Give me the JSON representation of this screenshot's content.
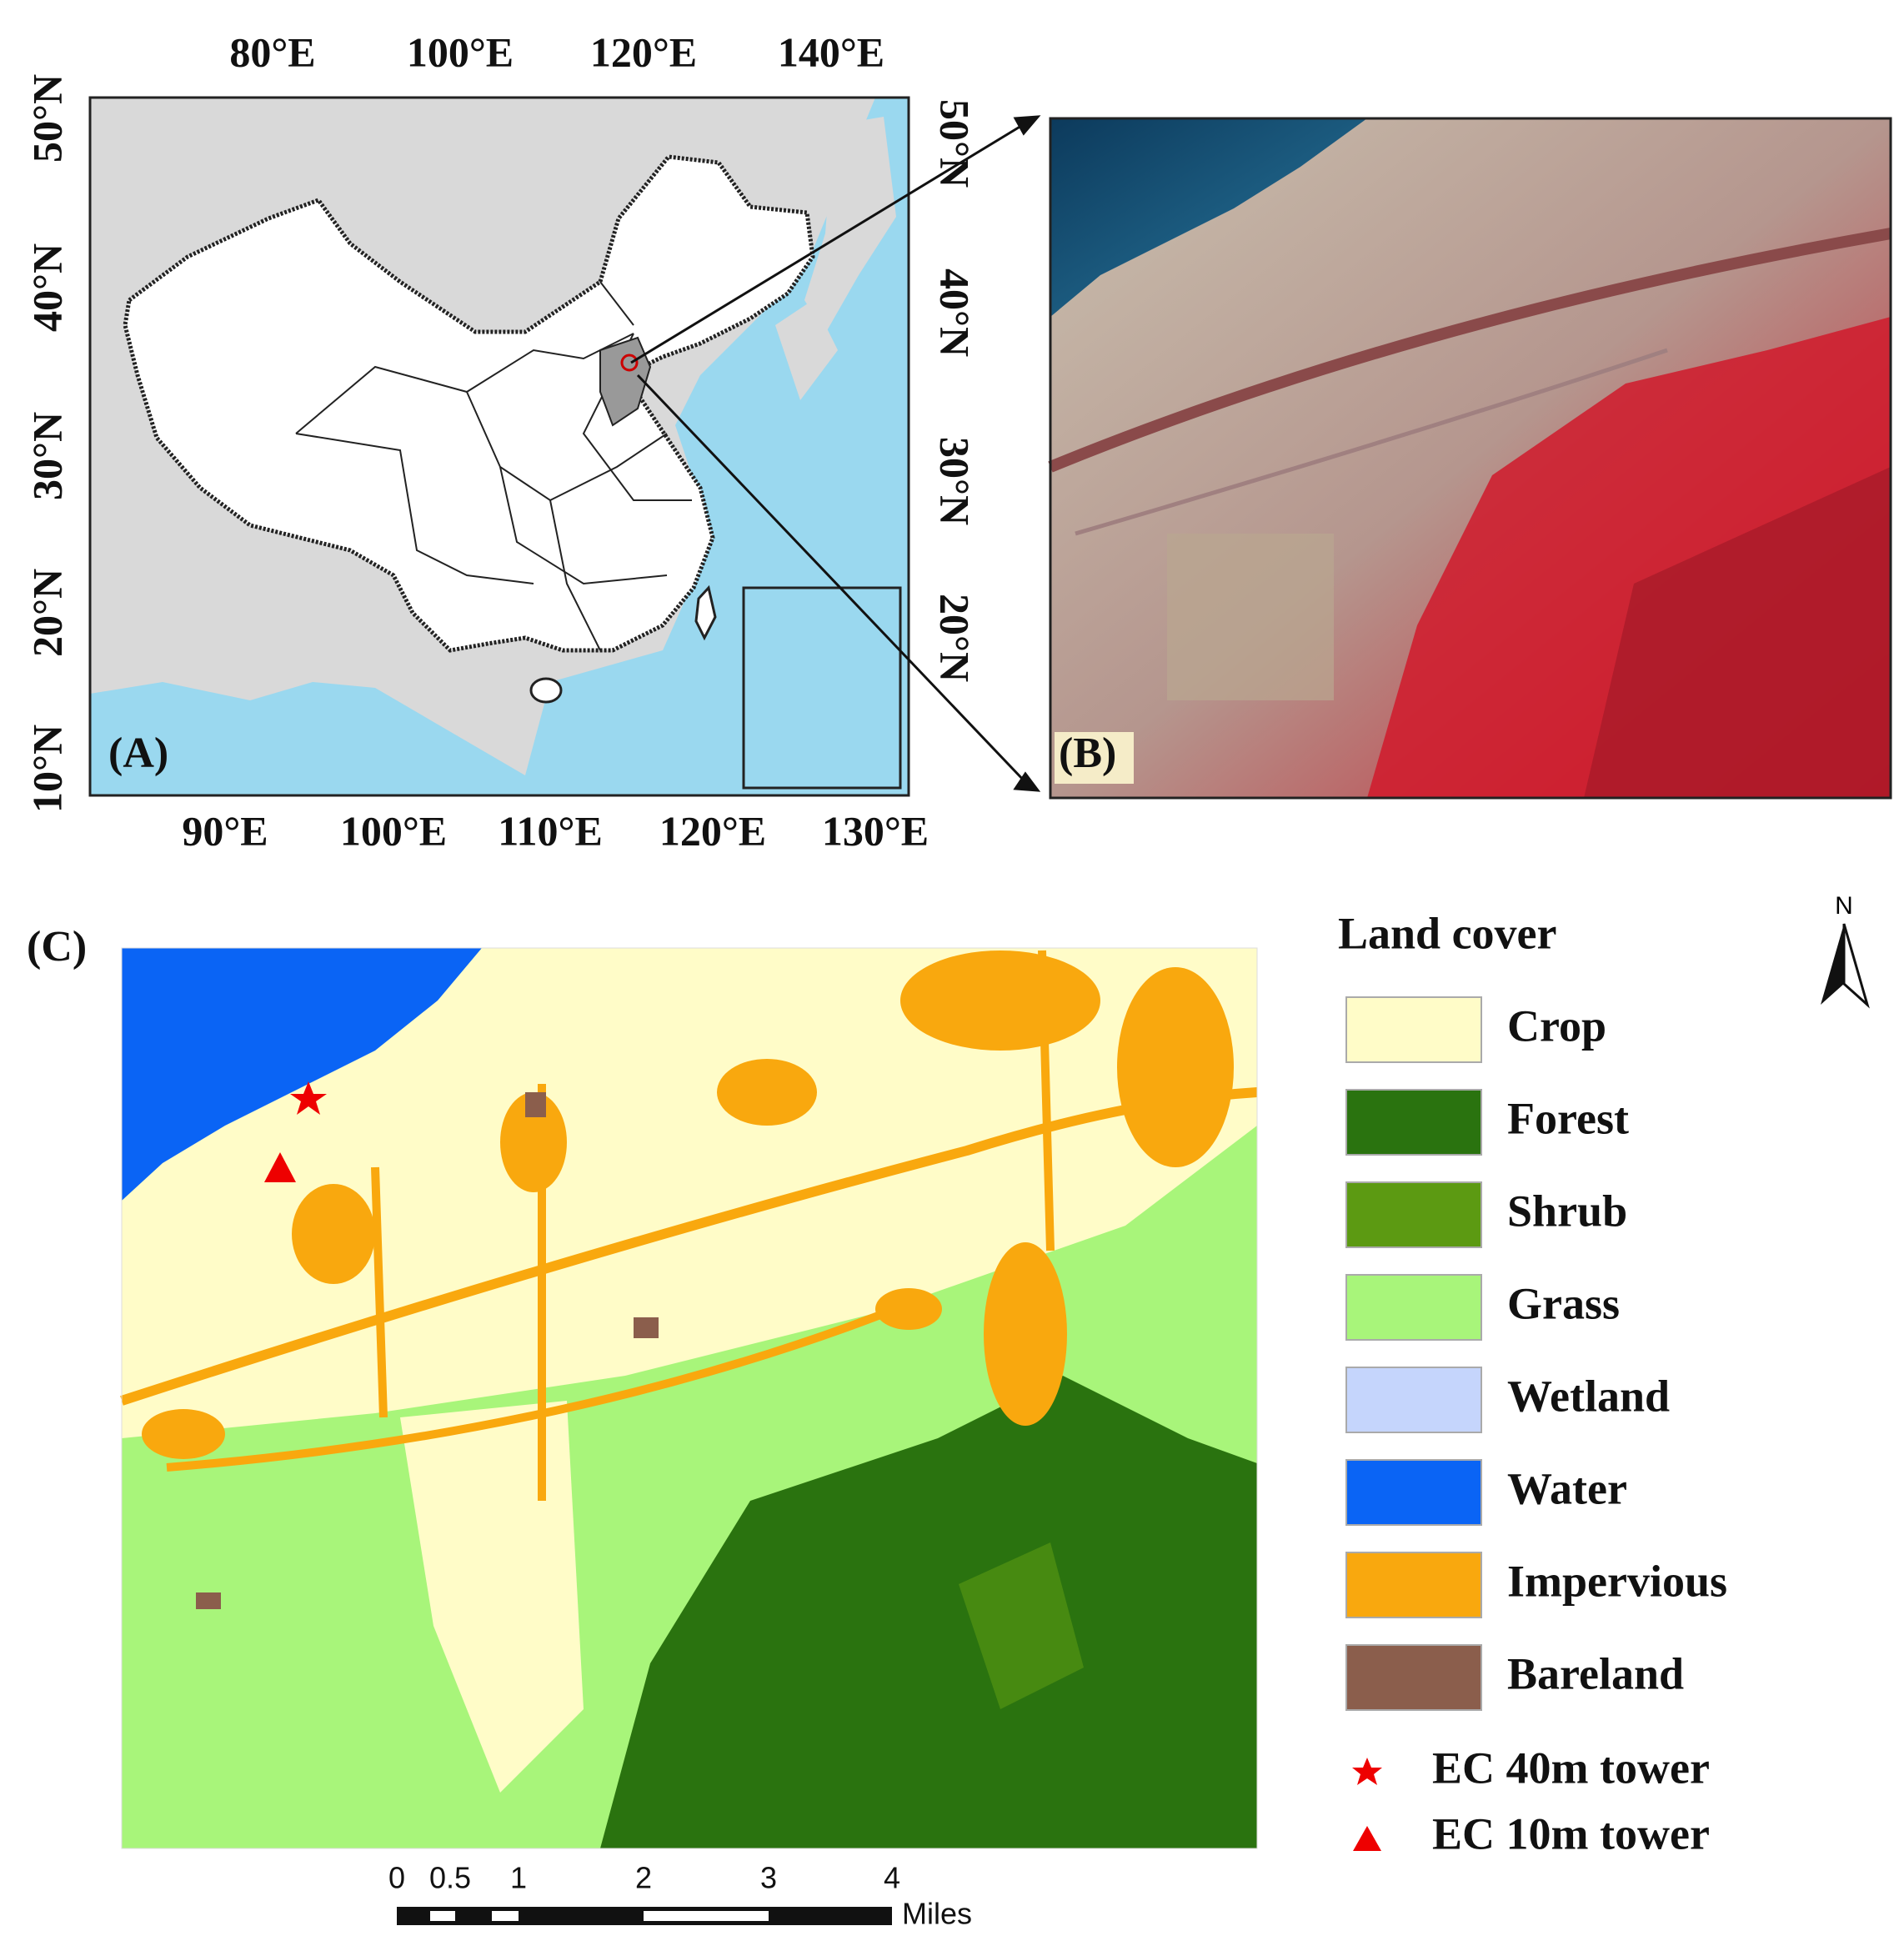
{
  "panel_a": {
    "label": "(A)",
    "top_ticks": [
      "80°E",
      "100°E",
      "120°E",
      "140°E"
    ],
    "bottom_ticks": [
      "90°E",
      "100°E",
      "110°E",
      "120°E",
      "130°E"
    ],
    "left_ticks": [
      "50°N",
      "40°N",
      "30°N",
      "20°N",
      "10°N"
    ],
    "right_ticks": [
      "50°N",
      "40°N",
      "30°N",
      "20°N"
    ]
  },
  "panel_b": {
    "label": "(B)"
  },
  "panel_c": {
    "label": "(C)",
    "north": "N"
  },
  "legend": {
    "title": "Land cover",
    "items": [
      {
        "label": "Crop",
        "color": "#fffcc8"
      },
      {
        "label": "Forest",
        "color": "#2a730f"
      },
      {
        "label": "Shrub",
        "color": "#5c9a12"
      },
      {
        "label": "Grass",
        "color": "#a8f57a"
      },
      {
        "label": "Wetland",
        "color": "#c5d5fc"
      },
      {
        "label": "Water",
        "color": "#0a64f5"
      },
      {
        "label": "Impervious",
        "color": "#f9a80e"
      },
      {
        "label": "Bareland",
        "color": "#8b5e4c"
      }
    ],
    "towers": [
      {
        "label": "EC 40m tower"
      },
      {
        "label": "EC 10m tower"
      }
    ]
  },
  "scale_bar": {
    "ticks": [
      "0",
      "0.5",
      "1",
      "2",
      "3",
      "4"
    ],
    "unit": "Miles"
  }
}
